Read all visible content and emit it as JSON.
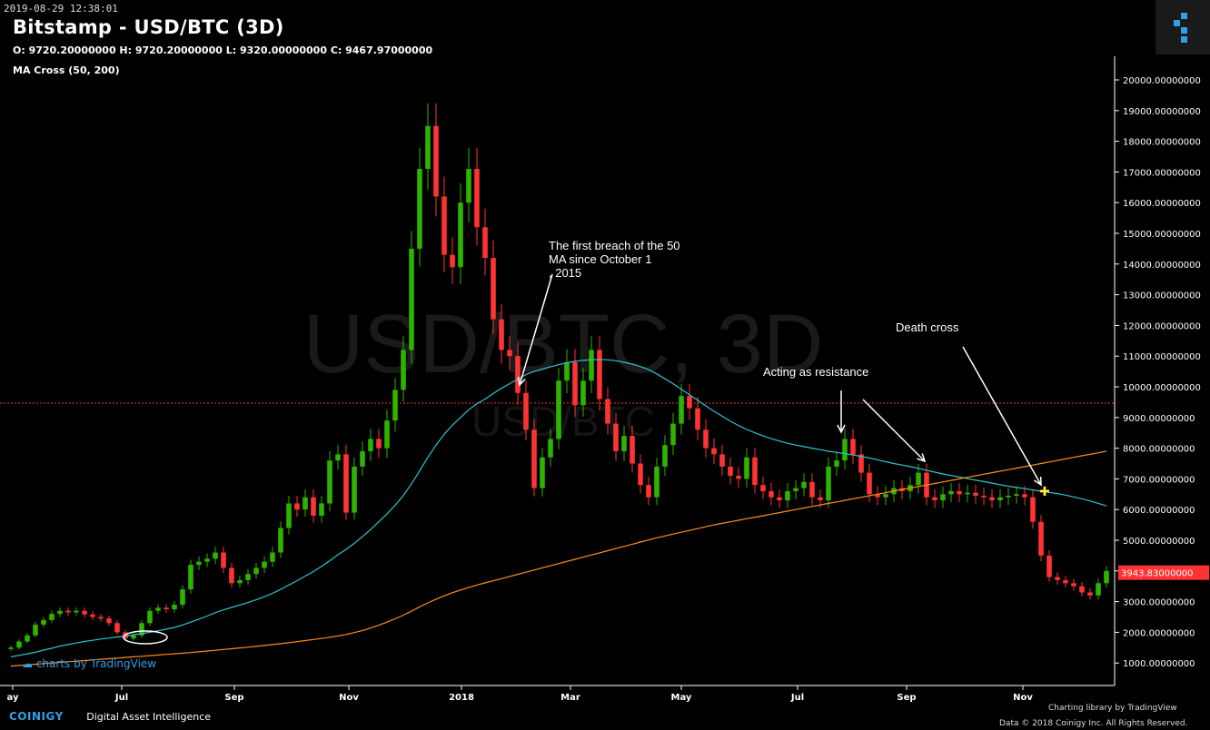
{
  "timestamp": "2019-08-29 12:38:01",
  "title": "Bitstamp - USD/BTC (3D)",
  "ohlc": "O: 9720.20000000 H: 9720.20000000 L: 9320.00000000 C: 9467.97000000",
  "indicator_label": "MA Cross (50, 200)",
  "watermark_main": "USD/BTC, 3D",
  "watermark_sub": "USD/BTC",
  "tradingview_badge": "charts by TradingView",
  "footer": {
    "brand": "COINIGY",
    "tagline": "Digital Asset Intelligence",
    "charting_label": "Charting library by TradingView",
    "data_label": "Data © 2018 Coinigy Inc. All Rights Reserved."
  },
  "colors": {
    "up": "#2db300",
    "down": "#ff3333",
    "ma50": "#2ec4cf",
    "ma200": "#ff8c1a",
    "price_line": "#ff3333",
    "background": "#000000",
    "accent": "#2f9fe8"
  },
  "chart_data": {
    "type": "candlestick",
    "title": "Bitstamp - USD/BTC (3D)",
    "x_tick_labels": [
      "ay",
      "Jul",
      "Sep",
      "Nov",
      "2018",
      "Mar",
      "May",
      "Jul",
      "Sep",
      "Nov"
    ],
    "y_tick_labels": [
      "1000.00000000",
      "2000.00000000",
      "3000.00000000",
      "4000.00000000",
      "5000.00000000",
      "6000.00000000",
      "7000.00000000",
      "8000.00000000",
      "9000.00000000",
      "10000.00000000",
      "11000.00000000",
      "12000.00000000",
      "13000.00000000",
      "14000.00000000",
      "15000.00000000",
      "16000.00000000",
      "17000.00000000",
      "18000.00000000",
      "19000.00000000",
      "20000.00000000"
    ],
    "ylim": [
      600,
      20600
    ],
    "current_price_label": "3943.83000000",
    "current_price": 3943.83,
    "reference_price": 9467.97,
    "closes": [
      1500,
      1700,
      1900,
      2250,
      2400,
      2600,
      2700,
      2650,
      2700,
      2580,
      2500,
      2450,
      2300,
      2000,
      1800,
      1900,
      2300,
      2700,
      2800,
      2750,
      2900,
      3400,
      4200,
      4300,
      4400,
      4600,
      4100,
      3600,
      3700,
      3900,
      4100,
      4300,
      4600,
      5400,
      6200,
      6000,
      6400,
      5800,
      6200,
      7600,
      7800,
      5900,
      7400,
      7900,
      8300,
      8000,
      8900,
      9900,
      11200,
      14500,
      17100,
      18500,
      16200,
      14300,
      13900,
      16000,
      17100,
      15200,
      14200,
      12200,
      11200,
      11000,
      9800,
      8600,
      6700,
      7700,
      8300,
      10200,
      10800,
      9400,
      10200,
      11200,
      9600,
      8800,
      7900,
      8400,
      7500,
      6800,
      6400,
      7400,
      8100,
      8800,
      9700,
      9300,
      8600,
      8000,
      7800,
      7400,
      7100,
      7000,
      7700,
      6800,
      6600,
      6400,
      6300,
      6600,
      6700,
      6900,
      6400,
      6300,
      7400,
      7600,
      8300,
      7800,
      7200,
      6500,
      6400,
      6500,
      6700,
      6600,
      6800,
      7200,
      6400,
      6300,
      6500,
      6600,
      6500,
      6550,
      6450,
      6400,
      6300,
      6400,
      6450,
      6500,
      6400,
      5600,
      4500,
      3800,
      3700,
      3600,
      3500,
      3300,
      3200,
      3600,
      4000
    ],
    "series": [
      {
        "name": "MA 50",
        "values": [
          1200,
          1250,
          1300,
          1350,
          1420,
          1480,
          1550,
          1600,
          1650,
          1700,
          1740,
          1780,
          1810,
          1850,
          1880,
          1920,
          1960,
          2000,
          2050,
          2100,
          2160,
          2240,
          2330,
          2430,
          2530,
          2640,
          2730,
          2810,
          2890,
          2970,
          3060,
          3160,
          3270,
          3400,
          3540,
          3680,
          3830,
          3980,
          4150,
          4330,
          4530,
          4700,
          4900,
          5120,
          5350,
          5600,
          5860,
          6140,
          6460,
          6840,
          7260,
          7700,
          8100,
          8450,
          8750,
          9000,
          9250,
          9450,
          9600,
          9780,
          9950,
          10100,
          10250,
          10400,
          10500,
          10580,
          10650,
          10720,
          10780,
          10830,
          10860,
          10880,
          10890,
          10880,
          10850,
          10800,
          10740,
          10660,
          10560,
          10420,
          10260,
          10100,
          9920,
          9740,
          9560,
          9380,
          9200,
          9040,
          8880,
          8740,
          8610,
          8500,
          8400,
          8310,
          8230,
          8160,
          8100,
          8050,
          8000,
          7950,
          7900,
          7860,
          7820,
          7780,
          7730,
          7680,
          7620,
          7560,
          7500,
          7450,
          7400,
          7340,
          7280,
          7220,
          7160,
          7110,
          7060,
          7010,
          6960,
          6910,
          6860,
          6810,
          6760,
          6720,
          6680,
          6640,
          6600,
          6560,
          6520,
          6470,
          6410,
          6350,
          6280,
          6200,
          6120
        ]
      },
      {
        "name": "MA 200",
        "values": [
          900,
          920,
          940,
          960,
          980,
          1000,
          1020,
          1040,
          1060,
          1080,
          1100,
          1120,
          1140,
          1160,
          1180,
          1200,
          1220,
          1240,
          1260,
          1280,
          1300,
          1320,
          1340,
          1365,
          1390,
          1415,
          1440,
          1465,
          1490,
          1515,
          1540,
          1570,
          1600,
          1630,
          1660,
          1695,
          1730,
          1765,
          1800,
          1840,
          1880,
          1930,
          1990,
          2060,
          2140,
          2230,
          2330,
          2440,
          2560,
          2690,
          2830,
          2960,
          3080,
          3190,
          3290,
          3380,
          3460,
          3540,
          3610,
          3680,
          3750,
          3820,
          3890,
          3960,
          4030,
          4100,
          4170,
          4240,
          4310,
          4380,
          4450,
          4520,
          4590,
          4660,
          4730,
          4800,
          4870,
          4940,
          5010,
          5080,
          5140,
          5200,
          5260,
          5320,
          5380,
          5440,
          5500,
          5550,
          5600,
          5650,
          5700,
          5750,
          5800,
          5850,
          5900,
          5950,
          6000,
          6050,
          6100,
          6150,
          6200,
          6250,
          6300,
          6350,
          6400,
          6450,
          6500,
          6550,
          6600,
          6650,
          6700,
          6750,
          6800,
          6850,
          6900,
          6950,
          7000,
          7050,
          7100,
          7150,
          7200,
          7250,
          7300,
          7350,
          7400,
          7450,
          7500,
          7550,
          7600,
          7650,
          7700,
          7750,
          7800,
          7850,
          7900
        ]
      }
    ],
    "annotations": [
      {
        "text": "The first breach of the 50 MA since October 13, 2015"
      },
      {
        "text": "Acting as resistance"
      },
      {
        "text": "Death cross"
      }
    ],
    "grid": false
  }
}
